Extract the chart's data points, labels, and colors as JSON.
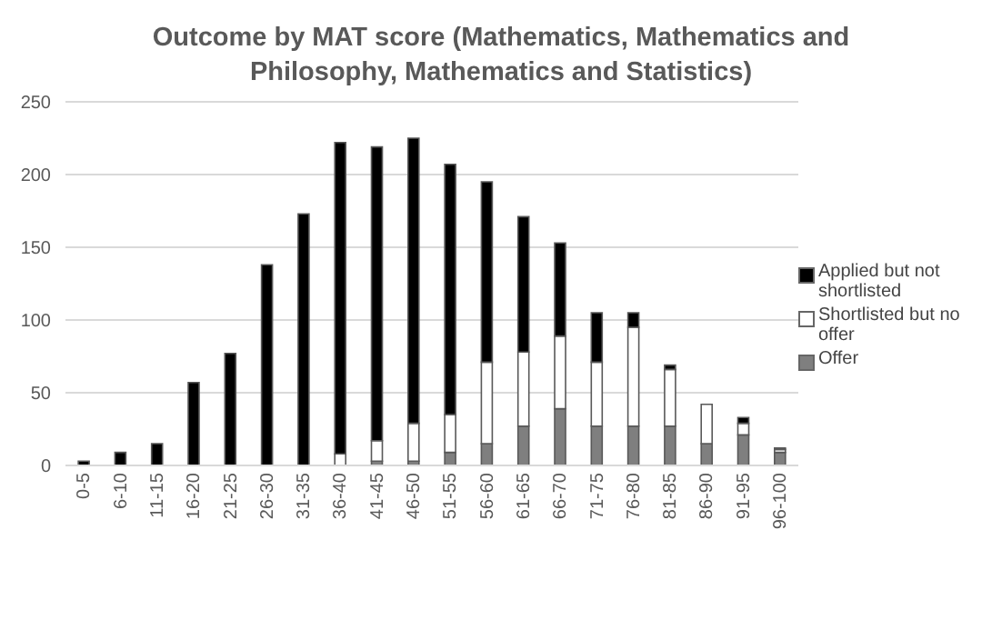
{
  "chart_data": {
    "type": "bar",
    "title": "Outcome by MAT score (Mathematics, Mathematics and Philosophy, Mathematics and Statistics)",
    "categories": [
      "0-5",
      "6-10",
      "11-15",
      "16-20",
      "21-25",
      "26-30",
      "31-35",
      "36-40",
      "41-45",
      "46-50",
      "51-55",
      "56-60",
      "61-65",
      "66-70",
      "71-75",
      "76-80",
      "81-85",
      "86-90",
      "91-95",
      "96-100"
    ],
    "stacked": true,
    "series": [
      {
        "name": "Offer",
        "color": "#7f7f7f",
        "values": [
          0,
          0,
          0,
          0,
          0,
          0,
          0,
          0,
          3,
          3,
          9,
          15,
          27,
          39,
          27,
          27,
          27,
          15,
          21,
          9
        ]
      },
      {
        "name": "Shortlisted but no offer",
        "color": "#ffffff",
        "values": [
          0,
          0,
          0,
          0,
          null,
          null,
          null,
          8,
          14,
          26,
          26,
          56,
          51,
          50,
          44,
          68,
          39,
          27,
          8,
          2
        ]
      },
      {
        "name": "Applied but not shortlisted",
        "color": "#000000",
        "values": [
          3,
          9,
          15,
          57,
          77,
          138,
          173,
          214,
          202,
          196,
          172,
          124,
          93,
          64,
          34,
          10,
          3,
          0,
          4,
          1
        ]
      }
    ],
    "ylim": [
      0,
      250
    ],
    "yticks": [
      0,
      50,
      100,
      150,
      200,
      250
    ],
    "grid": "y",
    "legend": "right"
  }
}
